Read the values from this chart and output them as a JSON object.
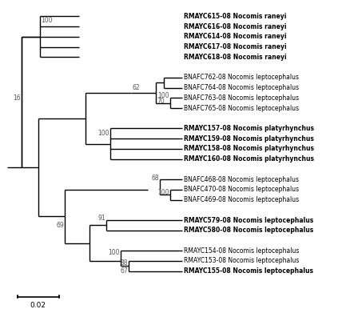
{
  "background_color": "#ffffff",
  "scale_bar_label": "0.02",
  "taxa": [
    {
      "label": "RMAYC615-08 Nocomis raneyi",
      "y": 20,
      "bold": true
    },
    {
      "label": "RMAYC616-08 Nocomis raneyi",
      "y": 19,
      "bold": true
    },
    {
      "label": "RMAYC614-08 Nocomis raneyi",
      "y": 18,
      "bold": true
    },
    {
      "label": "RMAYC617-08 Nocomis raneyi",
      "y": 17,
      "bold": true
    },
    {
      "label": "RMAYC618-08 Nocomis raneyi",
      "y": 16,
      "bold": true
    },
    {
      "label": "BNAFC762-08 Nocomis leptocephalus",
      "y": 14,
      "bold": false
    },
    {
      "label": "BNAFC764-08 Nocomis leptocephalus",
      "y": 13,
      "bold": false
    },
    {
      "label": "BNAFC763-08 Nocomis leptocephalus",
      "y": 12,
      "bold": false
    },
    {
      "label": "BNAFC765-08 Nocomis leptocephalus",
      "y": 11,
      "bold": false
    },
    {
      "label": "RMAYC157-08 Nocomis platyrhynchus",
      "y": 9,
      "bold": true
    },
    {
      "label": "RMAYC159-08 Nocomis platyrhynchus",
      "y": 8,
      "bold": true
    },
    {
      "label": "RMAYC158-08 Nocomis platyrhynchus",
      "y": 7,
      "bold": true
    },
    {
      "label": "RMAYC160-08 Nocomis platyrhynchus",
      "y": 6,
      "bold": true
    },
    {
      "label": "BNAFC468-08 Nocomis leptocephalus",
      "y": 4,
      "bold": false
    },
    {
      "label": "BNAFC470-08 Nocomis leptocephalus",
      "y": 3,
      "bold": false
    },
    {
      "label": "BNAFC469-08 Nocomis leptocephalus",
      "y": 2,
      "bold": false
    },
    {
      "label": "RMAYC579-08 Nocomis leptocephalus",
      "y": 0,
      "bold": true
    },
    {
      "label": "RMAYC580-08 Nocomis leptocephalus",
      "y": -1,
      "bold": true
    },
    {
      "label": "RMAYC154-08 Nocomis leptocephalus",
      "y": -3,
      "bold": false
    },
    {
      "label": "RMAYC153-08 Nocomis leptocephalus",
      "y": -4,
      "bold": false
    },
    {
      "label": "RMAYC155-08 Nocomis leptocephalus",
      "y": -5,
      "bold": true
    }
  ],
  "lw": 1.0,
  "label_fontsize": 5.5,
  "bootstrap_fontsize": 5.5,
  "scalebar_fontsize": 6.5
}
